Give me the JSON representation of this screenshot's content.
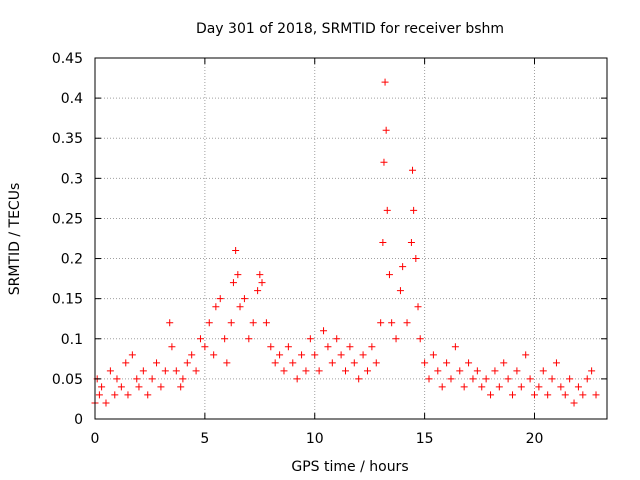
{
  "chart_data": {
    "type": "scatter",
    "title": "Day 301 of 2018, SRMTID for receiver bshm",
    "xlabel": "GPS time / hours",
    "ylabel": "SRMTID / TECUs",
    "xlim": [
      0,
      23.3
    ],
    "ylim": [
      0,
      0.45
    ],
    "x_ticks": [
      0,
      5,
      10,
      15,
      20
    ],
    "y_ticks": [
      0,
      0.05,
      0.1,
      0.15,
      0.2,
      0.25,
      0.3,
      0.35,
      0.4,
      0.45
    ],
    "x_tick_labels": [
      "0",
      "5",
      "10",
      "15",
      "20"
    ],
    "y_tick_labels": [
      "0",
      "0.05",
      "0.1",
      "0.15",
      "0.2",
      "0.25",
      "0.3",
      "0.35",
      "0.4",
      "0.45"
    ],
    "grid": true,
    "marker": "+",
    "color": "#ff0000",
    "series": [
      {
        "name": "SRMTID",
        "points": [
          [
            0.0,
            0.02
          ],
          [
            0.1,
            0.05
          ],
          [
            0.2,
            0.03
          ],
          [
            0.3,
            0.04
          ],
          [
            0.5,
            0.02
          ],
          [
            0.7,
            0.06
          ],
          [
            0.9,
            0.03
          ],
          [
            1.0,
            0.05
          ],
          [
            1.2,
            0.04
          ],
          [
            1.4,
            0.07
          ],
          [
            1.5,
            0.03
          ],
          [
            1.7,
            0.08
          ],
          [
            1.9,
            0.05
          ],
          [
            2.0,
            0.04
          ],
          [
            2.2,
            0.06
          ],
          [
            2.4,
            0.03
          ],
          [
            2.6,
            0.05
          ],
          [
            2.8,
            0.07
          ],
          [
            3.0,
            0.04
          ],
          [
            3.2,
            0.06
          ],
          [
            3.4,
            0.12
          ],
          [
            3.5,
            0.09
          ],
          [
            3.7,
            0.06
          ],
          [
            3.9,
            0.04
          ],
          [
            4.0,
            0.05
          ],
          [
            4.2,
            0.07
          ],
          [
            4.4,
            0.08
          ],
          [
            4.6,
            0.06
          ],
          [
            4.8,
            0.1
          ],
          [
            5.0,
            0.09
          ],
          [
            5.2,
            0.12
          ],
          [
            5.4,
            0.08
          ],
          [
            5.5,
            0.14
          ],
          [
            5.7,
            0.15
          ],
          [
            5.9,
            0.1
          ],
          [
            6.0,
            0.07
          ],
          [
            6.2,
            0.12
          ],
          [
            6.3,
            0.17
          ],
          [
            6.4,
            0.21
          ],
          [
            6.5,
            0.18
          ],
          [
            6.6,
            0.14
          ],
          [
            6.8,
            0.15
          ],
          [
            7.0,
            0.1
          ],
          [
            7.2,
            0.12
          ],
          [
            7.4,
            0.16
          ],
          [
            7.5,
            0.18
          ],
          [
            7.6,
            0.17
          ],
          [
            7.8,
            0.12
          ],
          [
            8.0,
            0.09
          ],
          [
            8.2,
            0.07
          ],
          [
            8.4,
            0.08
          ],
          [
            8.6,
            0.06
          ],
          [
            8.8,
            0.09
          ],
          [
            9.0,
            0.07
          ],
          [
            9.2,
            0.05
          ],
          [
            9.4,
            0.08
          ],
          [
            9.6,
            0.06
          ],
          [
            9.8,
            0.1
          ],
          [
            10.0,
            0.08
          ],
          [
            10.2,
            0.06
          ],
          [
            10.4,
            0.11
          ],
          [
            10.6,
            0.09
          ],
          [
            10.8,
            0.07
          ],
          [
            11.0,
            0.1
          ],
          [
            11.2,
            0.08
          ],
          [
            11.4,
            0.06
          ],
          [
            11.6,
            0.09
          ],
          [
            11.8,
            0.07
          ],
          [
            12.0,
            0.05
          ],
          [
            12.2,
            0.08
          ],
          [
            12.4,
            0.06
          ],
          [
            12.6,
            0.09
          ],
          [
            12.8,
            0.07
          ],
          [
            13.0,
            0.12
          ],
          [
            13.1,
            0.22
          ],
          [
            13.15,
            0.32
          ],
          [
            13.2,
            0.42
          ],
          [
            13.25,
            0.36
          ],
          [
            13.3,
            0.26
          ],
          [
            13.4,
            0.18
          ],
          [
            13.5,
            0.12
          ],
          [
            13.7,
            0.1
          ],
          [
            13.9,
            0.16
          ],
          [
            14.0,
            0.19
          ],
          [
            14.2,
            0.12
          ],
          [
            14.4,
            0.22
          ],
          [
            14.45,
            0.31
          ],
          [
            14.5,
            0.26
          ],
          [
            14.6,
            0.2
          ],
          [
            14.7,
            0.14
          ],
          [
            14.8,
            0.1
          ],
          [
            15.0,
            0.07
          ],
          [
            15.2,
            0.05
          ],
          [
            15.4,
            0.08
          ],
          [
            15.6,
            0.06
          ],
          [
            15.8,
            0.04
          ],
          [
            16.0,
            0.07
          ],
          [
            16.2,
            0.05
          ],
          [
            16.4,
            0.09
          ],
          [
            16.6,
            0.06
          ],
          [
            16.8,
            0.04
          ],
          [
            17.0,
            0.07
          ],
          [
            17.2,
            0.05
          ],
          [
            17.4,
            0.06
          ],
          [
            17.6,
            0.04
          ],
          [
            17.8,
            0.05
          ],
          [
            18.0,
            0.03
          ],
          [
            18.2,
            0.06
          ],
          [
            18.4,
            0.04
          ],
          [
            18.6,
            0.07
          ],
          [
            18.8,
            0.05
          ],
          [
            19.0,
            0.03
          ],
          [
            19.2,
            0.06
          ],
          [
            19.4,
            0.04
          ],
          [
            19.6,
            0.08
          ],
          [
            19.8,
            0.05
          ],
          [
            20.0,
            0.03
          ],
          [
            20.2,
            0.04
          ],
          [
            20.4,
            0.06
          ],
          [
            20.6,
            0.03
          ],
          [
            20.8,
            0.05
          ],
          [
            21.0,
            0.07
          ],
          [
            21.2,
            0.04
          ],
          [
            21.4,
            0.03
          ],
          [
            21.6,
            0.05
          ],
          [
            21.8,
            0.02
          ],
          [
            22.0,
            0.04
          ],
          [
            22.2,
            0.03
          ],
          [
            22.4,
            0.05
          ],
          [
            22.6,
            0.06
          ],
          [
            22.8,
            0.03
          ]
        ]
      }
    ]
  }
}
